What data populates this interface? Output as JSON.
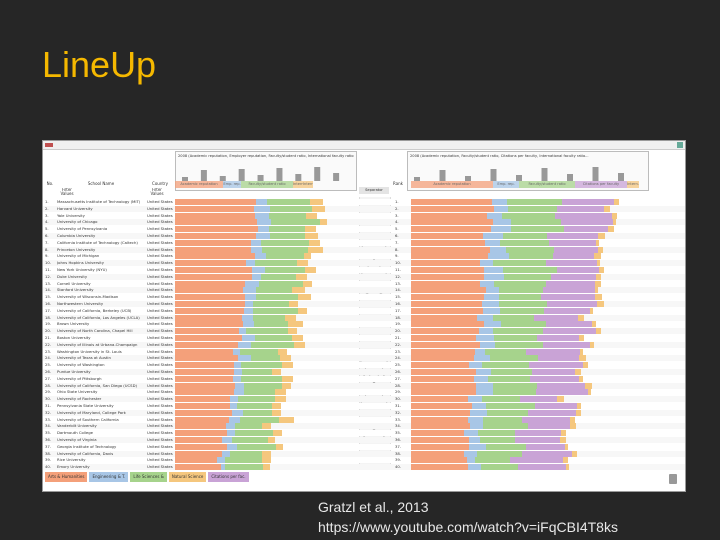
{
  "slide": {
    "title": "LineUp",
    "citation": "Gratzl et al., 2013",
    "url": "https://www.youtube.com/watch?v=iFqCBI4T8ks"
  },
  "app": {
    "left_panel": {
      "stack_caption": "2008 (Academic reputation, Employer reputation, Faculty/student ratio, International faculty ratio...",
      "columns": {
        "rank": "No.",
        "school": "School Name",
        "country": "Country",
        "sub_school": "Filter Values",
        "sub_country": "Filter Values"
      },
      "stack_cols": [
        "Academic reputation",
        "Emp. rep.",
        "Faculty/student ratio",
        "Intern.",
        "Intern."
      ]
    },
    "right_panel": {
      "stack_caption": "2008 (Academic reputation, Faculty/student ratio, Citations per faculty, International faculty ratio...",
      "columns": {
        "rank": "Rank",
        "separator": "Separator"
      },
      "stack_cols": [
        "Academic reputation",
        "Emp. rep.",
        "Faculty/student ratio",
        "Citations per faculty",
        "Intern."
      ]
    },
    "legend": [
      "Arts & Humanities",
      "Engineering & T.",
      "Life Sciences &",
      "Natural Science",
      "Citations per fac."
    ],
    "colors": {
      "academic": "#f4a07a",
      "employer": "#a8c6e6",
      "faculty": "#a6d38c",
      "citations": "#c9a3d6",
      "intl": "#f5c77e",
      "accent": "#f5b800"
    },
    "universities": [
      {
        "rank": "1.",
        "name": "Massachusetts Institute of Technology (MIT)",
        "country": "United States"
      },
      {
        "rank": "2.",
        "name": "Harvard University",
        "country": "United States"
      },
      {
        "rank": "3.",
        "name": "Yale University",
        "country": "United States"
      },
      {
        "rank": "4.",
        "name": "University of Chicago",
        "country": "United States"
      },
      {
        "rank": "5.",
        "name": "University of Pennsylvania",
        "country": "United States"
      },
      {
        "rank": "6.",
        "name": "Columbia University",
        "country": "United States"
      },
      {
        "rank": "7.",
        "name": "California Institute of Technology (Caltech)",
        "country": "United States"
      },
      {
        "rank": "8.",
        "name": "Princeton University",
        "country": "United States"
      },
      {
        "rank": "9.",
        "name": "University of Michigan",
        "country": "United States"
      },
      {
        "rank": "10.",
        "name": "Johns Hopkins University",
        "country": "United States"
      },
      {
        "rank": "11.",
        "name": "New York University (NYU)",
        "country": "United States"
      },
      {
        "rank": "12.",
        "name": "Duke University",
        "country": "United States"
      },
      {
        "rank": "13.",
        "name": "Cornell University",
        "country": "United States"
      },
      {
        "rank": "14.",
        "name": "Stanford University",
        "country": "United States"
      },
      {
        "rank": "15.",
        "name": "University of Wisconsin-Madison",
        "country": "United States"
      },
      {
        "rank": "16.",
        "name": "Northwestern University",
        "country": "United States"
      },
      {
        "rank": "17.",
        "name": "University of California, Berkeley (UCB)",
        "country": "United States"
      },
      {
        "rank": "18.",
        "name": "University of California, Los Angeles (UCLA)",
        "country": "United States"
      },
      {
        "rank": "19.",
        "name": "Brown University",
        "country": "United States"
      },
      {
        "rank": "20.",
        "name": "University of North Carolina, Chapel Hill",
        "country": "United States"
      },
      {
        "rank": "21.",
        "name": "Boston University",
        "country": "United States"
      },
      {
        "rank": "22.",
        "name": "University of Illinois at Urbana-Champaign",
        "country": "United States"
      },
      {
        "rank": "23.",
        "name": "Washington University in St. Louis",
        "country": "United States"
      },
      {
        "rank": "24.",
        "name": "University of Texas at Austin",
        "country": "United States"
      },
      {
        "rank": "25.",
        "name": "University of Washington",
        "country": "United States"
      },
      {
        "rank": "26.",
        "name": "Purdue University",
        "country": "United States"
      },
      {
        "rank": "27.",
        "name": "University of Pittsburgh",
        "country": "United States"
      },
      {
        "rank": "28.",
        "name": "University of California, San Diego (UCSD)",
        "country": "United States"
      },
      {
        "rank": "29.",
        "name": "Ohio State University",
        "country": "United States"
      },
      {
        "rank": "30.",
        "name": "University of Rochester",
        "country": "United States"
      },
      {
        "rank": "31.",
        "name": "Pennsylvania State University",
        "country": "United States"
      },
      {
        "rank": "32.",
        "name": "University of Maryland, College Park",
        "country": "United States"
      },
      {
        "rank": "33.",
        "name": "University of Southern California",
        "country": "United States"
      },
      {
        "rank": "34.",
        "name": "Vanderbilt University",
        "country": "United States"
      },
      {
        "rank": "35.",
        "name": "Dartmouth College",
        "country": "United States"
      },
      {
        "rank": "36.",
        "name": "University of Virginia",
        "country": "United States"
      },
      {
        "rank": "37.",
        "name": "Georgia Institute of Technology",
        "country": "United States"
      },
      {
        "rank": "38.",
        "name": "University of California, Davis",
        "country": "United States"
      },
      {
        "rank": "39.",
        "name": "Rice University",
        "country": "United States"
      },
      {
        "rank": "40.",
        "name": "Emory University",
        "country": "United States"
      }
    ]
  }
}
